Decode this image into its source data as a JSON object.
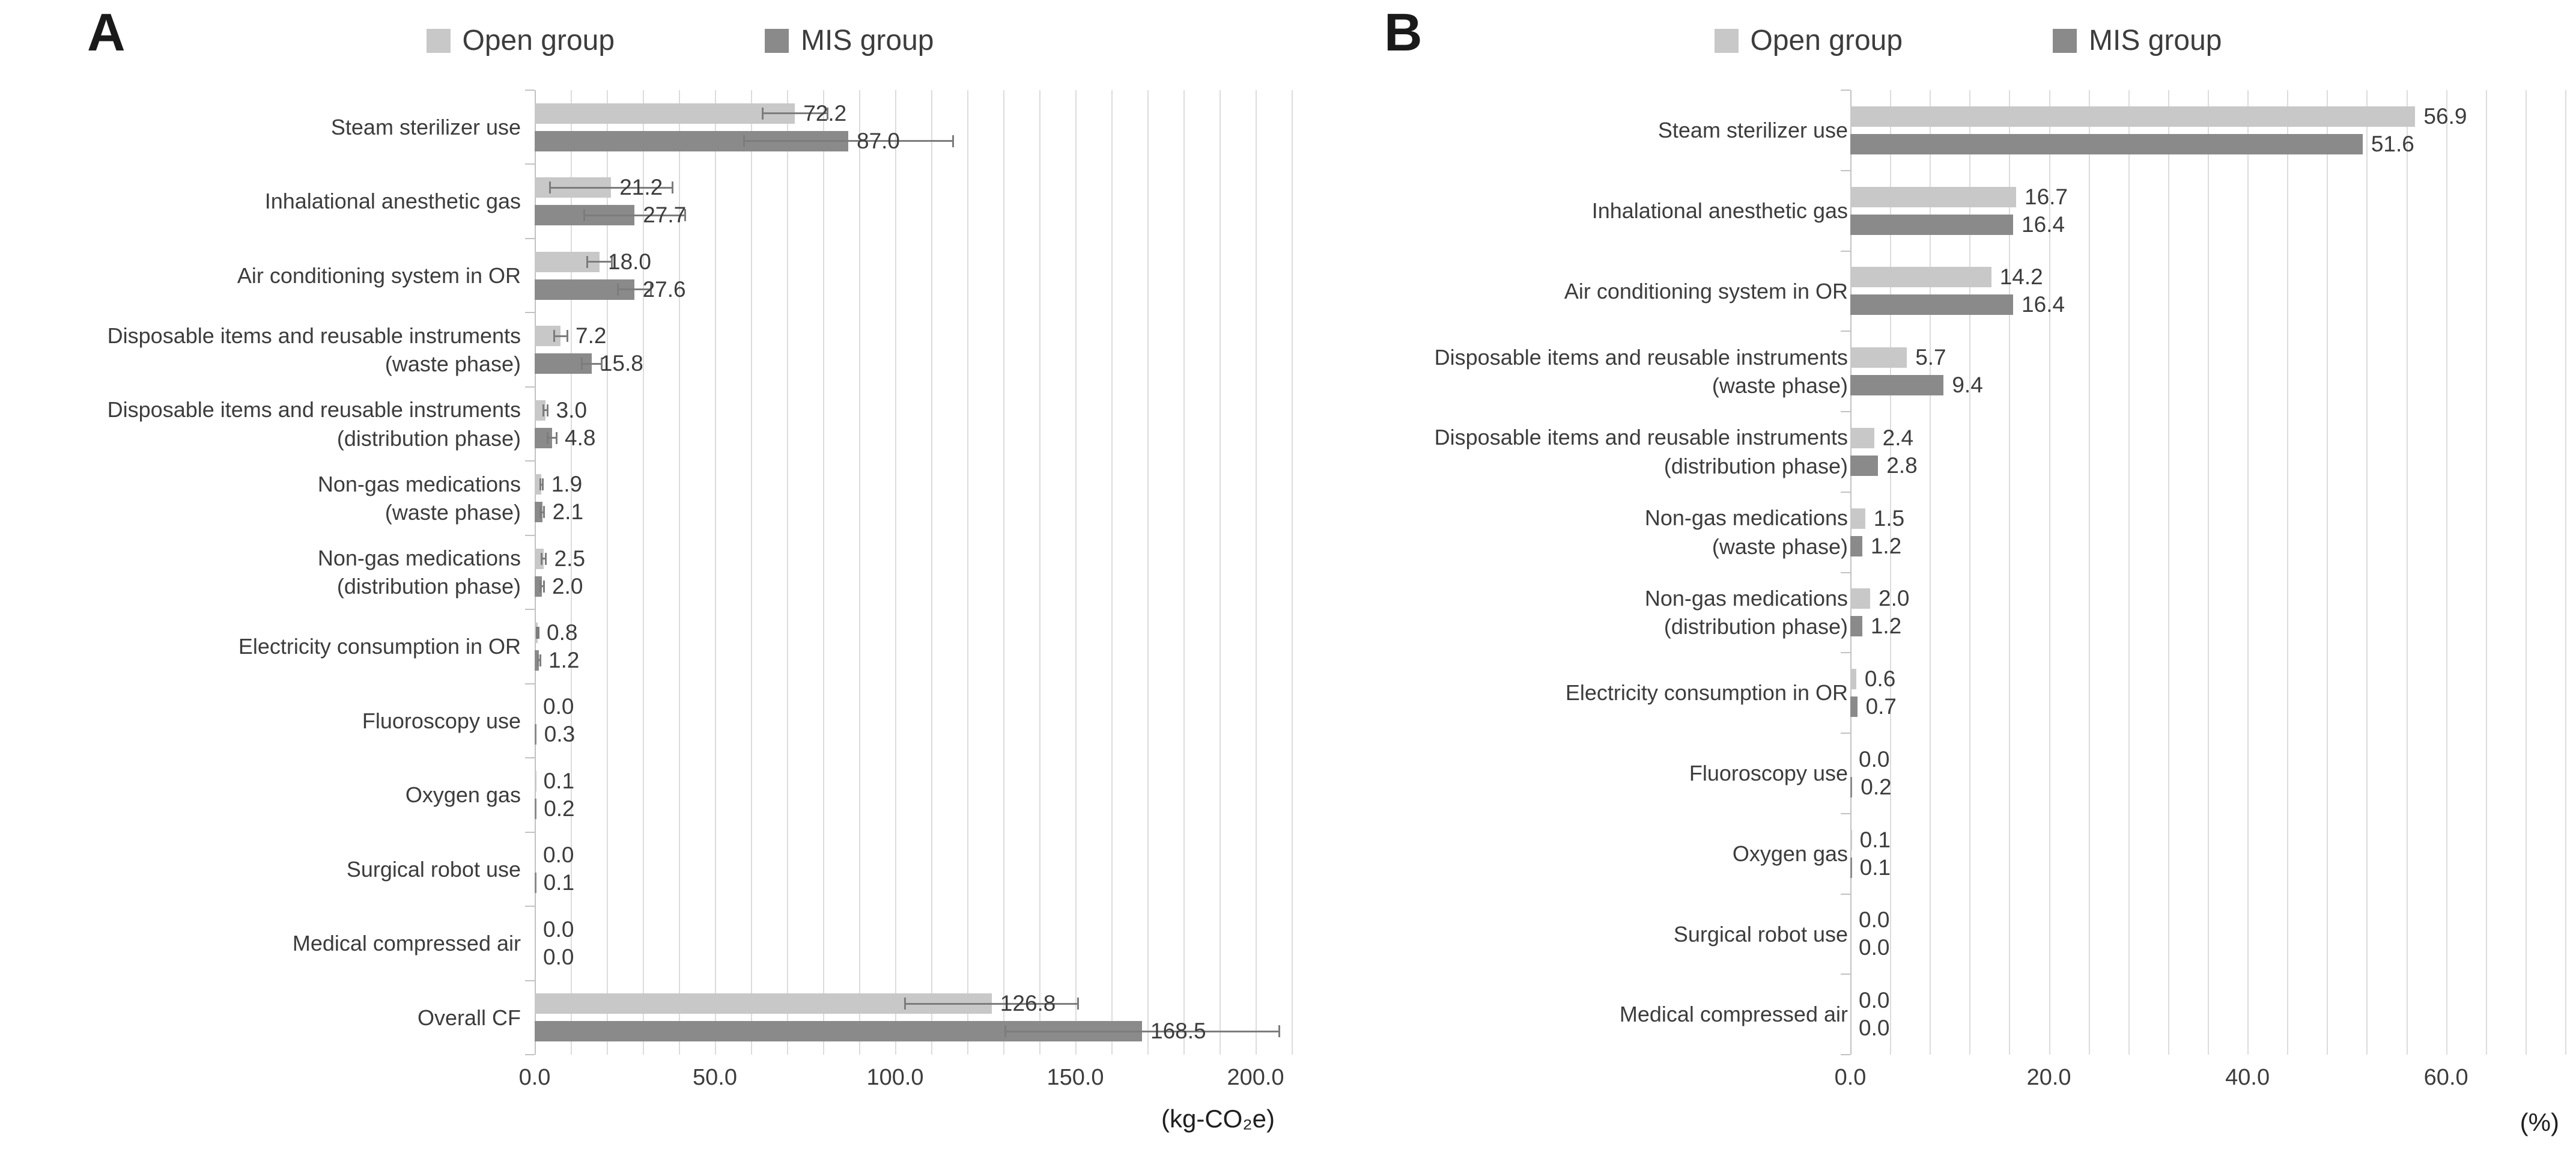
{
  "legend": {
    "open_label": "Open group",
    "mis_label": "MIS group"
  },
  "panels": [
    {
      "letter": "A"
    },
    {
      "letter": "B"
    }
  ],
  "colors": {
    "open": "#c8c8c8",
    "mis": "#8a8a8a",
    "error_bar": "#7c7c7c",
    "gridline": "#dcdcdc",
    "axis": "#c2c2c2",
    "text": "#3c3c3c"
  },
  "chart_data": [
    {
      "type": "bar",
      "panel": "A",
      "orientation": "horizontal",
      "title": "",
      "unit_label": "(kg-CO₂e)",
      "legend_position": "top",
      "grid": true,
      "xlim": [
        0,
        210
      ],
      "x_major_ticks": [
        0,
        50,
        100,
        150,
        200
      ],
      "x_minor_step": 10,
      "categories": [
        "Steam sterilizer use",
        "Inhalational anesthetic gas",
        "Air conditioning system in OR",
        "Disposable items and reusable instruments\n(waste phase)",
        "Disposable items and reusable instruments\n(distribution phase)",
        "Non-gas medications\n(waste phase)",
        "Non-gas medications\n(distribution phase)",
        "Electricity consumption in OR",
        "Fluoroscopy use",
        "Oxygen gas",
        "Surgical robot use",
        "Medical compressed air",
        "Overall CF"
      ],
      "series": [
        {
          "name": "Open group",
          "values": [
            72.2,
            21.2,
            18.0,
            7.2,
            3.0,
            1.9,
            2.5,
            0.8,
            0.0,
            0.1,
            0.0,
            0.0,
            126.8
          ],
          "errors": [
            9.0,
            17.0,
            3.4,
            1.8,
            0.6,
            0.4,
            0.6,
            0.2,
            0,
            0,
            0,
            0,
            24.0
          ]
        },
        {
          "name": "MIS group",
          "values": [
            87.0,
            27.7,
            27.6,
            15.8,
            4.8,
            2.1,
            2.0,
            1.2,
            0.3,
            0.2,
            0.1,
            0.0,
            168.5
          ],
          "errors": [
            29.0,
            14.0,
            4.6,
            2.8,
            1.2,
            0.5,
            0.5,
            0.3,
            0,
            0,
            0,
            0,
            38.0
          ]
        }
      ]
    },
    {
      "type": "bar",
      "panel": "B",
      "orientation": "horizontal",
      "title": "",
      "unit_label": "(%)",
      "legend_position": "top",
      "grid": true,
      "xlim": [
        0,
        72
      ],
      "x_major_ticks": [
        0,
        20,
        40,
        60
      ],
      "x_minor_step": 4,
      "categories": [
        "Steam sterilizer use",
        "Inhalational anesthetic gas",
        "Air conditioning system in OR",
        "Disposable items and reusable instruments\n(waste phase)",
        "Disposable items and reusable instruments\n(distribution phase)",
        "Non-gas medications\n(waste phase)",
        "Non-gas medications\n(distribution phase)",
        "Electricity consumption in OR",
        "Fluoroscopy use",
        "Oxygen gas",
        "Surgical robot use",
        "Medical compressed air"
      ],
      "series": [
        {
          "name": "Open group",
          "values": [
            56.9,
            16.7,
            14.2,
            5.7,
            2.4,
            1.5,
            2.0,
            0.6,
            0.0,
            0.1,
            0.0,
            0.0
          ]
        },
        {
          "name": "MIS group",
          "values": [
            51.6,
            16.4,
            16.4,
            9.4,
            2.8,
            1.2,
            1.2,
            0.7,
            0.2,
            0.1,
            0.0,
            0.0
          ]
        }
      ]
    }
  ]
}
